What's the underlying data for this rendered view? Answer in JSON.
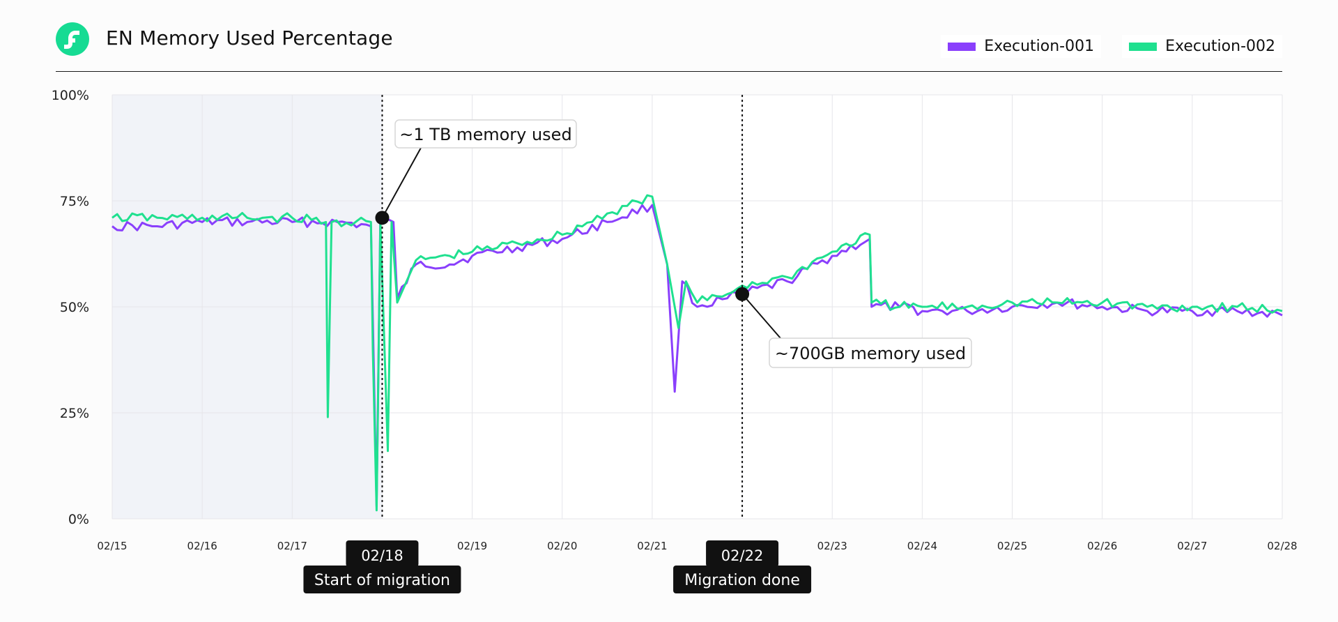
{
  "header": {
    "title": "EN Memory Used Percentage",
    "logo_icon": "flow-logo-icon",
    "logo_color": "#16DB93"
  },
  "chart_data": {
    "type": "line",
    "title": "EN Memory Used Percentage",
    "xlabel": "",
    "ylabel": "",
    "ylim": [
      0,
      100
    ],
    "x_ticks": [
      "02/15",
      "02/16",
      "02/17",
      "02/18",
      "02/19",
      "02/20",
      "02/21",
      "02/22",
      "02/23",
      "02/24",
      "02/25",
      "02/26",
      "02/27",
      "02/28"
    ],
    "y_ticks": [
      "0%",
      "25%",
      "50%",
      "75%",
      "100%"
    ],
    "y_tick_values": [
      0,
      25,
      50,
      75,
      100
    ],
    "grid": true,
    "legend_position": "top-right",
    "shaded_region": {
      "start": "02/15",
      "end": "02/18",
      "color": "#F1F3F8"
    },
    "series": [
      {
        "name": "Execution-001",
        "color": "#8A3FFC",
        "points": [
          [
            "02/15",
            69
          ],
          [
            "02/15 12:00",
            69
          ],
          [
            "02/16",
            70
          ],
          [
            "02/16 12:00",
            70
          ],
          [
            "02/17",
            70
          ],
          [
            "02/17 12:00",
            70
          ],
          [
            "02/17 21:00",
            69
          ],
          [
            "02/17 22:30",
            3
          ],
          [
            "02/17 23:30",
            71
          ],
          [
            "02/18",
            70
          ],
          [
            "02/18 03:00",
            70
          ],
          [
            "02/18 04:00",
            52
          ],
          [
            "02/18 09:00",
            60
          ],
          [
            "02/18 18:00",
            60
          ],
          [
            "02/19",
            62
          ],
          [
            "02/19 12:00",
            64
          ],
          [
            "02/20",
            66
          ],
          [
            "02/20 12:00",
            70
          ],
          [
            "02/21",
            74
          ],
          [
            "02/21 04:00",
            60
          ],
          [
            "02/21 06:00",
            30
          ],
          [
            "02/21 08:00",
            56
          ],
          [
            "02/21 12:00",
            50
          ],
          [
            "02/21 20:00",
            52
          ],
          [
            "02/22",
            53
          ],
          [
            "02/22 12:00",
            56
          ],
          [
            "02/23",
            62
          ],
          [
            "02/23 10:00",
            66
          ],
          [
            "02/23 10:30",
            50
          ],
          [
            "02/23 18:00",
            50
          ],
          [
            "02/24",
            49
          ],
          [
            "02/24 12:00",
            49
          ],
          [
            "02/25",
            50
          ],
          [
            "02/25 12:00",
            51
          ],
          [
            "02/26",
            50
          ],
          [
            "02/26 12:00",
            49
          ],
          [
            "02/27",
            49
          ],
          [
            "02/27 12:00",
            49
          ],
          [
            "02/28",
            48
          ]
        ]
      },
      {
        "name": "Execution-002",
        "color": "#1FE08F",
        "points": [
          [
            "02/15",
            71
          ],
          [
            "02/15 12:00",
            71
          ],
          [
            "02/16",
            71
          ],
          [
            "02/16 12:00",
            71
          ],
          [
            "02/17",
            71
          ],
          [
            "02/17 09:00",
            70
          ],
          [
            "02/17 09:30",
            24
          ],
          [
            "02/17 10:30",
            70
          ],
          [
            "02/17 21:00",
            70
          ],
          [
            "02/17 21:30",
            40
          ],
          [
            "02/17 22:30",
            2
          ],
          [
            "02/17 23:30",
            70
          ],
          [
            "02/18 01:30",
            16
          ],
          [
            "02/18 02:30",
            70
          ],
          [
            "02/18 04:00",
            51
          ],
          [
            "02/18 09:00",
            61
          ],
          [
            "02/18 18:00",
            62
          ],
          [
            "02/19",
            63
          ],
          [
            "02/19 12:00",
            65
          ],
          [
            "02/20",
            67
          ],
          [
            "02/20 12:00",
            72
          ],
          [
            "02/21",
            76
          ],
          [
            "02/21 04:00",
            60
          ],
          [
            "02/21 07:00",
            45
          ],
          [
            "02/21 09:00",
            56
          ],
          [
            "02/21 12:00",
            51
          ],
          [
            "02/21 20:00",
            53
          ],
          [
            "02/22",
            55
          ],
          [
            "02/22 12:00",
            57
          ],
          [
            "02/23",
            63
          ],
          [
            "02/23 10:00",
            67
          ],
          [
            "02/23 10:30",
            51
          ],
          [
            "02/23 18:00",
            50
          ],
          [
            "02/24",
            50
          ],
          [
            "02/24 12:00",
            50
          ],
          [
            "02/25",
            51
          ],
          [
            "02/25 12:00",
            51
          ],
          [
            "02/26",
            51
          ],
          [
            "02/26 12:00",
            50
          ],
          [
            "02/27",
            50
          ],
          [
            "02/27 12:00",
            50
          ],
          [
            "02/28",
            49
          ]
        ]
      }
    ],
    "annotations": [
      {
        "text": "~1 TB memory used",
        "x": "02/18",
        "y": 71
      },
      {
        "text": "~700GB memory used",
        "x": "02/22",
        "y": 53
      }
    ],
    "event_markers": [
      {
        "date_label": "02/18",
        "label": "Start of migration"
      },
      {
        "date_label": "02/22",
        "label": "Migration done"
      }
    ]
  }
}
